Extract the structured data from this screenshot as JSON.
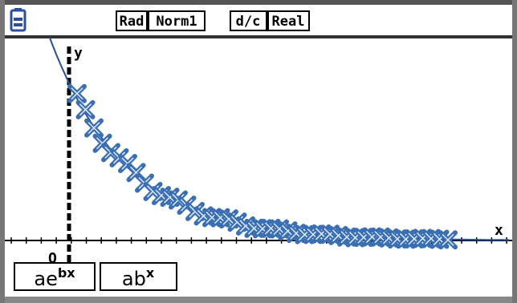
{
  "status_bar": {
    "items": [
      "Rad",
      "Norm1",
      "d/c",
      "Real"
    ]
  },
  "graph": {
    "y_axis_label": "y",
    "x_axis_label": "x",
    "origin_label": "O"
  },
  "menu": [
    {
      "base": "ae",
      "sup": "bx"
    },
    {
      "base": "ab",
      "sup": "x"
    }
  ]
}
